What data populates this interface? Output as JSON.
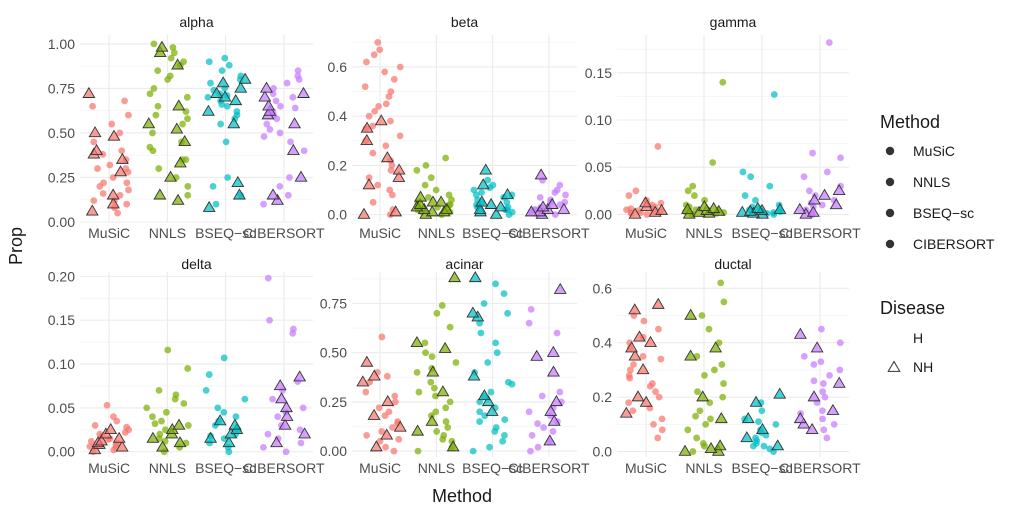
{
  "chart_data": {
    "type": "scatter",
    "xlabel": "Method",
    "ylabel": "Prop",
    "categories": [
      "MuSiC",
      "NNLS",
      "BSEQ−sc",
      "CIBERSORT"
    ],
    "colors": {
      "MuSiC": "#F8766D",
      "NNLS": "#7CAE00",
      "BSEQ−sc": "#00BFC4",
      "CIBERSORT": "#C77CFF"
    },
    "grid": true,
    "legend_placement": "right",
    "legend": {
      "method_title": "Method",
      "method_items": [
        "MuSiC",
        "NNLS",
        "BSEQ−sc",
        "CIBERSORT"
      ],
      "disease_title": "Disease",
      "disease_items": [
        {
          "label": "H",
          "shape": "circle"
        },
        {
          "label": "NH",
          "shape": "triangle"
        }
      ]
    },
    "panels": [
      {
        "title": "alpha",
        "ylim": [
          0,
          1.05
        ],
        "yticks": [
          "0.00",
          "0.25",
          "0.50",
          "0.75",
          "1.00"
        ],
        "series": [
          {
            "name": "MuSiC",
            "H": [
              0.05,
              0.08,
              0.1,
              0.12,
              0.15,
              0.18,
              0.2,
              0.22,
              0.25,
              0.28,
              0.3,
              0.32,
              0.35,
              0.4,
              0.45,
              0.5,
              0.55,
              0.6,
              0.65,
              0.68,
              0.12,
              0.22,
              0.3,
              0.38,
              0.16
            ],
            "NH": [
              0.06,
              0.1,
              0.15,
              0.28,
              0.35,
              0.38,
              0.4,
              0.48,
              0.5,
              0.72
            ]
          },
          {
            "name": "NNLS",
            "H": [
              0.15,
              0.2,
              0.25,
              0.3,
              0.35,
              0.4,
              0.45,
              0.5,
              0.55,
              0.6,
              0.65,
              0.7,
              0.75,
              0.8,
              0.85,
              0.88,
              0.9,
              0.92,
              0.95,
              0.98,
              1.0,
              0.42,
              0.58,
              0.72,
              0.82,
              0.35,
              0.62
            ],
            "NH": [
              0.12,
              0.15,
              0.25,
              0.33,
              0.45,
              0.52,
              0.55,
              0.65,
              0.88,
              0.95,
              0.98
            ]
          },
          {
            "name": "BSEQ−sc",
            "H": [
              0.1,
              0.15,
              0.2,
              0.25,
              0.45,
              0.55,
              0.6,
              0.62,
              0.65,
              0.68,
              0.7,
              0.72,
              0.75,
              0.78,
              0.8,
              0.82,
              0.85,
              0.88,
              0.9,
              0.92,
              0.66,
              0.74,
              0.58,
              0.71
            ],
            "NH": [
              0.08,
              0.15,
              0.22,
              0.55,
              0.62,
              0.68,
              0.7,
              0.72,
              0.75,
              0.78,
              0.8
            ]
          },
          {
            "name": "CIBERSORT",
            "H": [
              0.1,
              0.15,
              0.2,
              0.25,
              0.4,
              0.45,
              0.5,
              0.55,
              0.58,
              0.6,
              0.62,
              0.65,
              0.68,
              0.7,
              0.72,
              0.75,
              0.78,
              0.8,
              0.82,
              0.85,
              0.52,
              0.64,
              0.48
            ],
            "NH": [
              0.12,
              0.15,
              0.25,
              0.4,
              0.55,
              0.6,
              0.62,
              0.65,
              0.7,
              0.72,
              0.75
            ]
          }
        ]
      },
      {
        "title": "beta",
        "ylim": [
          -0.03,
          0.73
        ],
        "yticks": [
          "0.0",
          "0.2",
          "0.4",
          "0.6"
        ],
        "series": [
          {
            "name": "MuSiC",
            "H": [
              0.0,
              0.02,
              0.05,
              0.08,
              0.1,
              0.12,
              0.15,
              0.18,
              0.2,
              0.22,
              0.25,
              0.28,
              0.3,
              0.32,
              0.35,
              0.38,
              0.4,
              0.42,
              0.45,
              0.48,
              0.5,
              0.52,
              0.55,
              0.58,
              0.6,
              0.62,
              0.65,
              0.67,
              0.7,
              0.44,
              0.36
            ],
            "NH": [
              0.0,
              0.01,
              0.12,
              0.15,
              0.18,
              0.23,
              0.3,
              0.35,
              0.38
            ]
          },
          {
            "name": "NNLS",
            "H": [
              0.0,
              0.01,
              0.02,
              0.03,
              0.04,
              0.05,
              0.06,
              0.08,
              0.1,
              0.12,
              0.15,
              0.18,
              0.2,
              0.23,
              0.02,
              0.04,
              0.07,
              0.01,
              0.03
            ],
            "NH": [
              0.0,
              0.01,
              0.01,
              0.02,
              0.02,
              0.03,
              0.04,
              0.05,
              0.05,
              0.07
            ]
          },
          {
            "name": "BSEQ−sc",
            "H": [
              0.0,
              0.01,
              0.02,
              0.03,
              0.04,
              0.05,
              0.06,
              0.07,
              0.08,
              0.09,
              0.1,
              0.11,
              0.12,
              0.14,
              0.02,
              0.05,
              0.08,
              0.03
            ],
            "NH": [
              0.0,
              0.01,
              0.02,
              0.03,
              0.04,
              0.05,
              0.08,
              0.12,
              0.18
            ]
          },
          {
            "name": "CIBERSORT",
            "H": [
              0.0,
              0.01,
              0.02,
              0.03,
              0.04,
              0.05,
              0.06,
              0.07,
              0.08,
              0.09,
              0.1,
              0.12,
              0.14,
              0.02,
              0.05
            ],
            "NH": [
              0.0,
              0.01,
              0.01,
              0.02,
              0.02,
              0.03,
              0.04,
              0.16
            ]
          }
        ]
      },
      {
        "title": "gamma",
        "ylim": [
          -0.008,
          0.19
        ],
        "yticks": [
          "0.00",
          "0.05",
          "0.10",
          "0.15"
        ],
        "series": [
          {
            "name": "MuSiC",
            "H": [
              0.0,
              0.001,
              0.002,
              0.003,
              0.004,
              0.005,
              0.006,
              0.008,
              0.01,
              0.012,
              0.015,
              0.02,
              0.025,
              0.072,
              0.002,
              0.004
            ],
            "NH": [
              0.0,
              0.002,
              0.004,
              0.008,
              0.012
            ]
          },
          {
            "name": "NNLS",
            "H": [
              0.0,
              0.001,
              0.002,
              0.003,
              0.005,
              0.008,
              0.01,
              0.015,
              0.02,
              0.025,
              0.03,
              0.055,
              0.14,
              0.004
            ],
            "NH": [
              0.0,
              0.001,
              0.002,
              0.003,
              0.004,
              0.005,
              0.006,
              0.008
            ]
          },
          {
            "name": "BSEQ−sc",
            "H": [
              0.0,
              0.001,
              0.002,
              0.003,
              0.005,
              0.008,
              0.01,
              0.015,
              0.02,
              0.03,
              0.04,
              0.045,
              0.127,
              0.004,
              0.006
            ],
            "NH": [
              0.0,
              0.001,
              0.002,
              0.003,
              0.004,
              0.005,
              0.006
            ]
          },
          {
            "name": "CIBERSORT",
            "H": [
              0.0,
              0.002,
              0.005,
              0.008,
              0.01,
              0.015,
              0.02,
              0.025,
              0.03,
              0.04,
              0.045,
              0.06,
              0.065,
              0.182,
              0.012
            ],
            "NH": [
              0.0,
              0.002,
              0.005,
              0.01,
              0.015,
              0.02,
              0.025
            ]
          }
        ]
      },
      {
        "title": "delta",
        "ylim": [
          -0.006,
          0.205
        ],
        "yticks": [
          "0.00",
          "0.05",
          "0.10",
          "0.15",
          "0.20"
        ],
        "series": [
          {
            "name": "MuSiC",
            "H": [
              0.0,
              0.002,
              0.005,
              0.008,
              0.01,
              0.012,
              0.015,
              0.018,
              0.02,
              0.022,
              0.025,
              0.028,
              0.03,
              0.035,
              0.04,
              0.053,
              0.006,
              0.014
            ],
            "NH": [
              0.002,
              0.005,
              0.008,
              0.01,
              0.012,
              0.015,
              0.02,
              0.025
            ]
          },
          {
            "name": "NNLS",
            "H": [
              0.0,
              0.005,
              0.01,
              0.015,
              0.02,
              0.025,
              0.03,
              0.035,
              0.04,
              0.045,
              0.05,
              0.055,
              0.06,
              0.065,
              0.07,
              0.095,
              0.116,
              0.012,
              0.032
            ],
            "NH": [
              0.005,
              0.01,
              0.015,
              0.02,
              0.025,
              0.03
            ]
          },
          {
            "name": "BSEQ−sc",
            "H": [
              0.0,
              0.005,
              0.01,
              0.015,
              0.02,
              0.025,
              0.03,
              0.035,
              0.04,
              0.045,
              0.05,
              0.06,
              0.07,
              0.088,
              0.107,
              0.018
            ],
            "NH": [
              0.01,
              0.015,
              0.02,
              0.025,
              0.03,
              0.035
            ]
          },
          {
            "name": "CIBERSORT",
            "H": [
              0.0,
              0.005,
              0.01,
              0.015,
              0.02,
              0.025,
              0.03,
              0.04,
              0.05,
              0.06,
              0.07,
              0.08,
              0.135,
              0.14,
              0.15,
              0.198,
              0.045
            ],
            "NH": [
              0.01,
              0.02,
              0.03,
              0.04,
              0.05,
              0.06,
              0.075,
              0.085
            ]
          }
        ]
      },
      {
        "title": "acinar",
        "ylim": [
          -0.03,
          0.91
        ],
        "yticks": [
          "0.00",
          "0.25",
          "0.50",
          "0.75"
        ],
        "series": [
          {
            "name": "MuSiC",
            "H": [
              0.0,
              0.02,
              0.05,
              0.08,
              0.1,
              0.12,
              0.15,
              0.18,
              0.2,
              0.22,
              0.25,
              0.28,
              0.3,
              0.35,
              0.38,
              0.4,
              0.58,
              0.06,
              0.14
            ],
            "NH": [
              0.02,
              0.08,
              0.12,
              0.18,
              0.25,
              0.35,
              0.38,
              0.45
            ]
          },
          {
            "name": "NNLS",
            "H": [
              0.0,
              0.02,
              0.05,
              0.08,
              0.1,
              0.12,
              0.15,
              0.18,
              0.2,
              0.22,
              0.25,
              0.28,
              0.3,
              0.35,
              0.4,
              0.42,
              0.45,
              0.48,
              0.5,
              0.55,
              0.63,
              0.7,
              0.74,
              0.32,
              0.06
            ],
            "NH": [
              0.02,
              0.1,
              0.15,
              0.3,
              0.4,
              0.52,
              0.55,
              0.88
            ]
          },
          {
            "name": "BSEQ−sc",
            "H": [
              0.0,
              0.02,
              0.05,
              0.08,
              0.1,
              0.12,
              0.15,
              0.18,
              0.2,
              0.22,
              0.25,
              0.28,
              0.3,
              0.35,
              0.4,
              0.45,
              0.5,
              0.55,
              0.6,
              0.65,
              0.7,
              0.75,
              0.8,
              0.85,
              0.34,
              0.16
            ],
            "NH": [
              0.2,
              0.25,
              0.28,
              0.38,
              0.68,
              0.7,
              0.88
            ]
          },
          {
            "name": "CIBERSORT",
            "H": [
              0.0,
              0.02,
              0.05,
              0.08,
              0.1,
              0.12,
              0.15,
              0.18,
              0.2,
              0.22,
              0.25,
              0.28,
              0.3,
              0.6,
              0.65,
              0.72,
              0.14
            ],
            "NH": [
              0.05,
              0.15,
              0.2,
              0.25,
              0.4,
              0.48,
              0.5,
              0.82
            ]
          }
        ]
      },
      {
        "title": "ductal",
        "ylim": [
          -0.02,
          0.66
        ],
        "yticks": [
          "0.0",
          "0.2",
          "0.4",
          "0.6"
        ],
        "series": [
          {
            "name": "MuSiC",
            "H": [
              0.05,
              0.08,
              0.1,
              0.12,
              0.15,
              0.18,
              0.2,
              0.22,
              0.25,
              0.28,
              0.3,
              0.32,
              0.35,
              0.38,
              0.4,
              0.42,
              0.45,
              0.48,
              0.5,
              0.24,
              0.16,
              0.34,
              0.27
            ],
            "NH": [
              0.14,
              0.18,
              0.2,
              0.3,
              0.35,
              0.38,
              0.4,
              0.42,
              0.52,
              0.54
            ]
          },
          {
            "name": "NNLS",
            "H": [
              0.0,
              0.02,
              0.05,
              0.08,
              0.1,
              0.12,
              0.15,
              0.18,
              0.2,
              0.22,
              0.25,
              0.28,
              0.3,
              0.32,
              0.35,
              0.4,
              0.45,
              0.5,
              0.55,
              0.62,
              0.03,
              0.13
            ],
            "NH": [
              0.0,
              0.0,
              0.01,
              0.02,
              0.12,
              0.2,
              0.35,
              0.38,
              0.5
            ]
          },
          {
            "name": "BSEQ−sc",
            "H": [
              0.0,
              0.01,
              0.02,
              0.03,
              0.04,
              0.05,
              0.06,
              0.08,
              0.1,
              0.12,
              0.15,
              0.18,
              0.02,
              0.07,
              0.11
            ],
            "NH": [
              0.02,
              0.05,
              0.08,
              0.12,
              0.18,
              0.21
            ]
          },
          {
            "name": "CIBERSORT",
            "H": [
              0.05,
              0.08,
              0.1,
              0.12,
              0.15,
              0.18,
              0.2,
              0.22,
              0.25,
              0.28,
              0.3,
              0.32,
              0.35,
              0.4,
              0.45,
              0.14,
              0.26,
              0.33
            ],
            "NH": [
              0.08,
              0.1,
              0.12,
              0.15,
              0.2,
              0.25,
              0.38,
              0.43
            ]
          }
        ]
      }
    ]
  }
}
